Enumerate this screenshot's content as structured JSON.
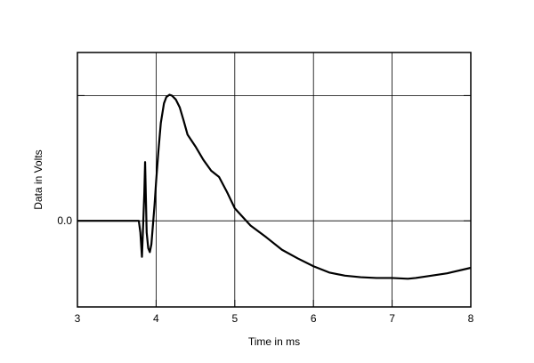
{
  "chart_data": {
    "type": "line",
    "title": "",
    "xlabel": "Time in ms",
    "ylabel": "Data in Volts",
    "xlim": [
      3,
      8
    ],
    "ylim": [
      -0.11,
      0.215
    ],
    "x_ticks": [
      3,
      4,
      5,
      6,
      7,
      8
    ],
    "x_tick_labels": [
      "3",
      "4",
      "5",
      "6",
      "7",
      "8"
    ],
    "y_ticks": [
      0.0
    ],
    "y_tick_labels": [
      "0.0"
    ],
    "extra_y_gridlines": [
      0.16
    ],
    "grid": true,
    "legend": "none",
    "colors": {
      "line": "#000000",
      "grid": "#000000",
      "background": "#ffffff"
    },
    "series": [
      {
        "x": [
          3.0,
          3.5,
          3.78,
          3.8,
          3.82,
          3.83,
          3.85,
          3.86,
          3.87,
          3.88,
          3.9,
          3.92,
          3.94,
          3.96,
          3.98,
          4.0,
          4.03,
          4.06,
          4.1,
          4.13,
          4.17,
          4.2,
          4.25,
          4.3,
          4.35,
          4.4,
          4.5,
          4.6,
          4.7,
          4.75,
          4.8,
          4.9,
          5.0,
          5.2,
          5.4,
          5.6,
          5.8,
          6.0,
          6.2,
          6.4,
          6.6,
          6.8,
          7.0,
          7.2,
          7.3,
          7.5,
          7.7,
          8.0
        ],
        "y": [
          0.0,
          0.0,
          0.0,
          -0.015,
          -0.046,
          -0.02,
          0.035,
          0.075,
          0.03,
          -0.015,
          -0.035,
          -0.04,
          -0.03,
          -0.005,
          0.02,
          0.05,
          0.09,
          0.125,
          0.15,
          0.158,
          0.161,
          0.16,
          0.155,
          0.145,
          0.128,
          0.11,
          0.095,
          0.078,
          0.064,
          0.06,
          0.056,
          0.037,
          0.016,
          -0.006,
          -0.021,
          -0.037,
          -0.048,
          -0.058,
          -0.066,
          -0.07,
          -0.072,
          -0.073,
          -0.073,
          -0.074,
          -0.073,
          -0.07,
          -0.067,
          -0.06
        ]
      }
    ]
  }
}
